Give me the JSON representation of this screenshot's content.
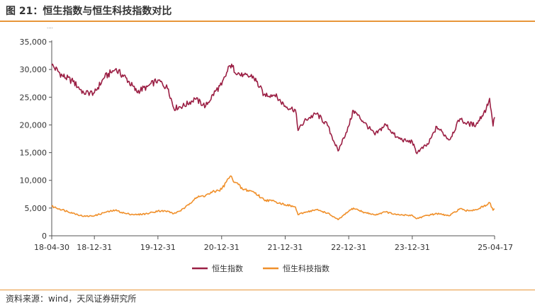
{
  "figure": {
    "title": "图 21：恒生指数与恒生科技指数对比",
    "source": "资料来源：wind，天风证券研究所",
    "unit_hint": "····"
  },
  "colors": {
    "hsi": "#9B1F44",
    "hstech": "#F0902B",
    "accent_rule": "#E8963A",
    "axis": "#555555"
  },
  "chart_data": {
    "type": "line",
    "title": "",
    "xlabel": "",
    "ylabel": "",
    "ylim": [
      0,
      35000
    ],
    "y_ticks": [
      "0",
      "5,000",
      "10,000",
      "15,000",
      "20,000",
      "25,000",
      "30,000",
      "35,000"
    ],
    "x_ticks": [
      "18-04-30",
      "18-12-31",
      "19-12-31",
      "20-12-31",
      "21-12-31",
      "22-12-31",
      "23-12-31",
      "25-04-17"
    ],
    "legend_position": "bottom-center",
    "grid": false,
    "x": [
      "2018-04-30",
      "2018-06-30",
      "2018-08-31",
      "2018-10-31",
      "2018-12-31",
      "2019-02-28",
      "2019-04-30",
      "2019-06-30",
      "2019-08-31",
      "2019-10-31",
      "2019-12-31",
      "2020-02-29",
      "2020-03-31",
      "2020-05-31",
      "2020-07-31",
      "2020-09-30",
      "2020-11-30",
      "2020-12-31",
      "2021-02-17",
      "2021-04-30",
      "2021-06-30",
      "2021-08-31",
      "2021-10-31",
      "2021-12-31",
      "2022-02-28",
      "2022-03-15",
      "2022-04-30",
      "2022-06-30",
      "2022-08-31",
      "2022-10-31",
      "2022-12-31",
      "2023-01-27",
      "2023-03-31",
      "2023-05-31",
      "2023-07-31",
      "2023-09-30",
      "2023-11-30",
      "2023-12-31",
      "2024-01-22",
      "2024-03-31",
      "2024-05-20",
      "2024-07-31",
      "2024-09-30",
      "2024-10-31",
      "2024-12-31",
      "2025-02-28",
      "2025-03-19",
      "2025-04-08",
      "2025-04-17"
    ],
    "series": [
      {
        "name": "恒生指数",
        "values": [
          30800,
          28900,
          27800,
          25800,
          25800,
          28600,
          30000,
          28500,
          26000,
          26900,
          28100,
          26500,
          23000,
          23500,
          24700,
          23400,
          26300,
          27200,
          30700,
          28700,
          28800,
          25500,
          25400,
          23400,
          22700,
          19000,
          21000,
          22000,
          19900,
          15300,
          19800,
          22600,
          20400,
          18200,
          20100,
          17800,
          17000,
          17000,
          15000,
          16500,
          19700,
          17300,
          21100,
          20300,
          20000,
          22900,
          24800,
          19800,
          21400
        ]
      },
      {
        "name": "恒生科技指数",
        "values": [
          5300,
          4700,
          4100,
          3500,
          3600,
          4200,
          4600,
          4000,
          3800,
          4000,
          4500,
          4400,
          4000,
          4900,
          6800,
          7300,
          8100,
          8400,
          10700,
          8400,
          8000,
          6500,
          6200,
          5600,
          5200,
          3800,
          4300,
          4700,
          4100,
          2900,
          4400,
          5000,
          4200,
          3800,
          4300,
          3800,
          3700,
          3700,
          3100,
          3700,
          4000,
          3600,
          4900,
          4500,
          4700,
          5500,
          6000,
          4600,
          4800
        ]
      }
    ]
  }
}
